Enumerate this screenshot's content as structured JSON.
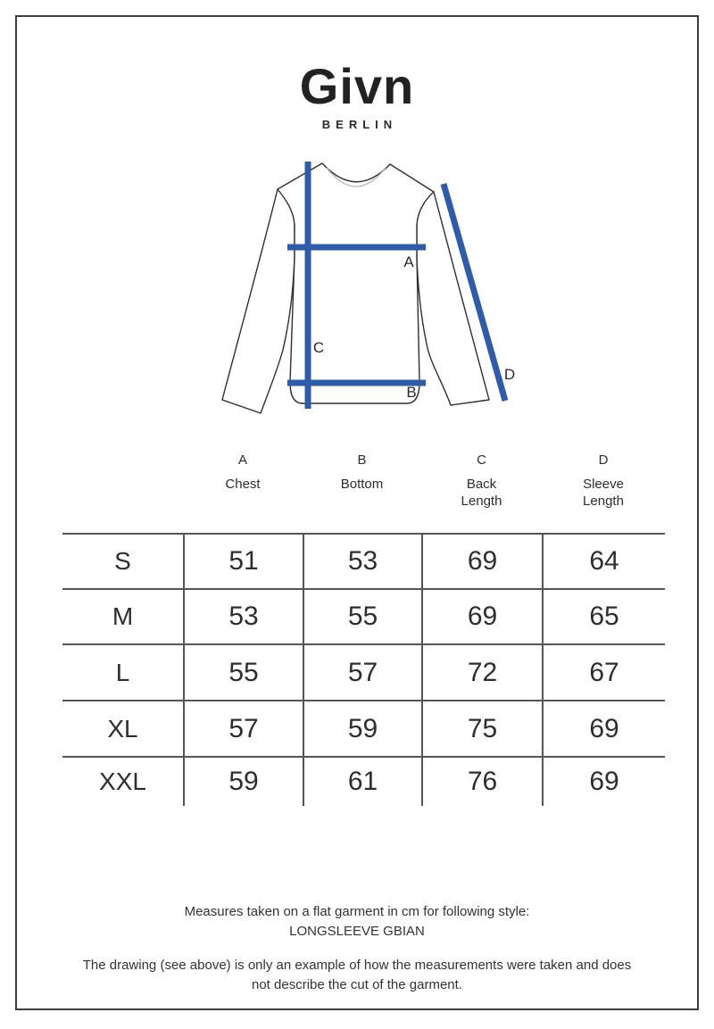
{
  "brand": {
    "name": "Givn",
    "city": "BERLIN"
  },
  "diagram": {
    "labels": {
      "a": "A",
      "b": "B",
      "c": "C",
      "d": "D"
    }
  },
  "measure_header": [
    {
      "letter": "A",
      "name": "Chest"
    },
    {
      "letter": "B",
      "name": "Bottom"
    },
    {
      "letter": "C",
      "name": "Back\nLength"
    },
    {
      "letter": "D",
      "name": "Sleeve\nLength"
    }
  ],
  "size_table": {
    "rows": [
      {
        "size": "S",
        "values": [
          "51",
          "53",
          "69",
          "64"
        ]
      },
      {
        "size": "M",
        "values": [
          "53",
          "55",
          "69",
          "65"
        ]
      },
      {
        "size": "L",
        "values": [
          "55",
          "57",
          "72",
          "67"
        ]
      },
      {
        "size": "XL",
        "values": [
          "57",
          "59",
          "75",
          "69"
        ]
      },
      {
        "size": "XXL",
        "values": [
          "59",
          "61",
          "76",
          "69"
        ]
      }
    ]
  },
  "footer": {
    "measure_note": "Measures taken on a flat garment in cm for following style:\nLONGSLEEVE GBIAN",
    "drawing_note": "The drawing (see above) is only an example of how the measurements were taken and does\nnot describe the cut of the garment."
  },
  "colors": {
    "accent_blue": "#2e5cab",
    "outline": "#2f2f2f",
    "frame": "#3f3f3f",
    "table_line": "#555555"
  }
}
